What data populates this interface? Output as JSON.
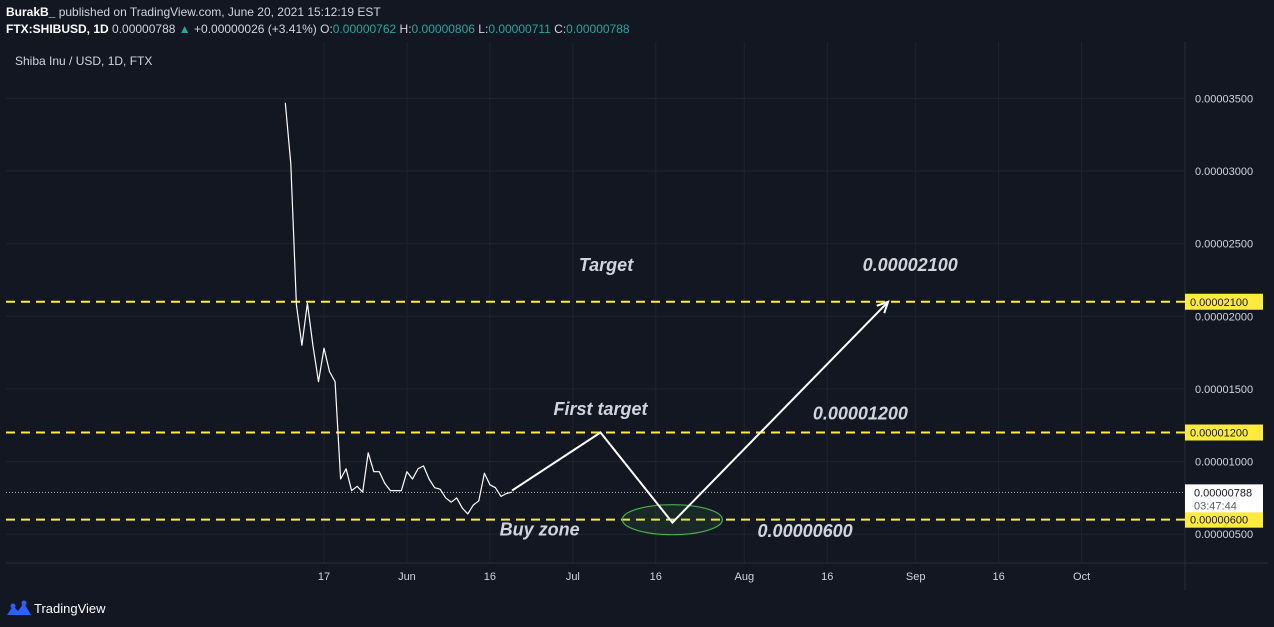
{
  "header": {
    "author": "BurakB_",
    "published": "published on TradingView.com, June 20, 2021 15:12:19 EST",
    "symbol": "FTX:SHIBUSD, 1D",
    "price": "0.00000788",
    "change_arrow": "▲",
    "change": "+0.00000026 (+3.41%)",
    "o_label": "O:",
    "o_value": "0.00000762",
    "h_label": "H:",
    "h_value": "0.00000806",
    "l_label": "L:",
    "l_value": "0.00000711",
    "c_label": "C:",
    "c_value": "0.00000788"
  },
  "footer": {
    "brand": "TradingView",
    "logo_icon": "tradingview-logo-icon"
  },
  "colors": {
    "background": "#131722",
    "pane": "#131722",
    "grid": "#1f2330",
    "line": "#ffffff",
    "level": "#ffeb3b",
    "positive": "#26a69a",
    "ellipse": "#4caf50"
  },
  "chart_data": {
    "type": "line",
    "title": "Shiba Inu / USD, 1D, FTX",
    "x_ticks": [
      "17",
      "Jun",
      "16",
      "Jul",
      "16",
      "Aug",
      "16",
      "Sep",
      "16",
      "Oct"
    ],
    "y_ticks": [
      "0.00003500",
      "0.00003000",
      "0.00002500",
      "0.00002000",
      "0.00001500",
      "0.00001000",
      "0.00000500"
    ],
    "ylim": [
      3.5e-06,
      3.85e-05
    ],
    "grid": true,
    "series": [
      {
        "x": [
          "2021-05-10",
          "2021-05-11",
          "2021-05-12",
          "2021-05-13",
          "2021-05-14",
          "2021-05-15",
          "2021-05-16",
          "2021-05-17",
          "2021-05-18",
          "2021-05-19",
          "2021-05-20",
          "2021-05-21",
          "2021-05-22",
          "2021-05-23",
          "2021-05-24",
          "2021-05-25",
          "2021-05-26",
          "2021-05-27",
          "2021-05-28",
          "2021-05-29",
          "2021-05-30",
          "2021-05-31",
          "2021-06-01",
          "2021-06-02",
          "2021-06-03",
          "2021-06-04",
          "2021-06-05",
          "2021-06-06",
          "2021-06-07",
          "2021-06-08",
          "2021-06-09",
          "2021-06-10",
          "2021-06-11",
          "2021-06-12",
          "2021-06-13",
          "2021-06-14",
          "2021-06-15",
          "2021-06-16",
          "2021-06-17",
          "2021-06-18",
          "2021-06-19",
          "2021-06-20"
        ],
        "values": [
          3.47e-05,
          3.05e-05,
          2.08e-05,
          1.8e-05,
          2.09e-05,
          1.8e-05,
          1.55e-05,
          1.78e-05,
          1.62e-05,
          1.55e-05,
          8.8e-06,
          9.5e-06,
          8e-06,
          8.3e-06,
          7.9e-06,
          1.06e-05,
          9.3e-06,
          9.3e-06,
          8.5e-06,
          8e-06,
          8e-06,
          8e-06,
          9.3e-06,
          8.8e-06,
          9.5e-06,
          9.7e-06,
          8.8e-06,
          8.2e-06,
          8.1e-06,
          7.5e-06,
          7.2e-06,
          7.5e-06,
          6.8e-06,
          6.4e-06,
          7e-06,
          7.3e-06,
          9.2e-06,
          8.4e-06,
          8.2e-06,
          7.6e-06,
          7.8e-06,
          7.9e-06
        ]
      }
    ],
    "projection": {
      "x": [
        "2021-06-20",
        "2021-07-06",
        "2021-07-19",
        "2021-08-27"
      ],
      "values": [
        8e-06,
        1.2e-05,
        5.8e-06,
        2.1e-05
      ]
    },
    "levels": [
      {
        "value": 2.1e-05,
        "label": "0.00002100"
      },
      {
        "value": 1.2e-05,
        "label": "0.00001200"
      },
      {
        "value": 6e-06,
        "label": "0.00000600"
      }
    ],
    "last_price": {
      "value": 7.88e-06,
      "label": "0.00000788",
      "countdown": "03:47:44"
    },
    "annotations": [
      {
        "text": "Target",
        "x": "2021-07-07",
        "y": 2.31e-05
      },
      {
        "text": "0.00002100",
        "x": "2021-08-31",
        "y": 2.31e-05
      },
      {
        "text": "First target",
        "x": "2021-07-06",
        "y": 1.32e-05
      },
      {
        "text": "0.00001200",
        "x": "2021-08-22",
        "y": 1.29e-05
      },
      {
        "text": "Buy zone",
        "x": "2021-06-25",
        "y": 4.9e-06
      },
      {
        "text": "0.00000600",
        "x": "2021-08-12",
        "y": 4.8e-06
      }
    ],
    "buy_zone": {
      "x": "2021-07-19",
      "y": 6e-06
    }
  }
}
